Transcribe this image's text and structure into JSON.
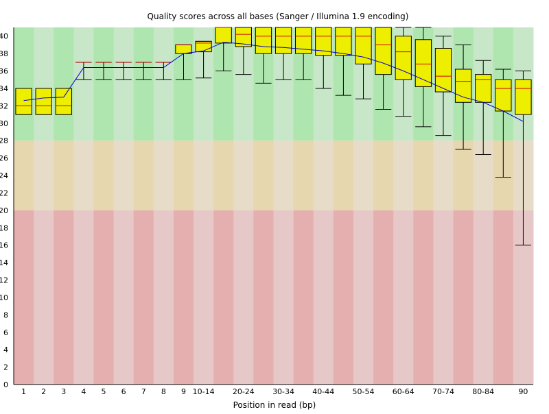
{
  "chart_data": {
    "type": "box",
    "title": "Quality scores across all bases (Sanger / Illumina 1.9 encoding)",
    "xlabel": "Position in read (bp)",
    "ylabel": "",
    "ylim": [
      0,
      41
    ],
    "y_ticks": [
      0,
      2,
      4,
      6,
      8,
      10,
      12,
      14,
      16,
      18,
      20,
      22,
      24,
      26,
      28,
      30,
      32,
      34,
      36,
      38,
      40
    ],
    "zones": [
      {
        "name": "good",
        "from": 28,
        "to": 41,
        "colors": [
          "#afe6af",
          "#c8e6c8"
        ]
      },
      {
        "name": "reasonable",
        "from": 20,
        "to": 28,
        "colors": [
          "#e6d7af",
          "#e6dcc8"
        ]
      },
      {
        "name": "poor",
        "from": 0,
        "to": 20,
        "colors": [
          "#e6afaf",
          "#e6c8c8"
        ]
      }
    ],
    "colors": {
      "box": "#eeee00",
      "box_stroke": "#000000",
      "median": "#cc0000",
      "mean_line": "#0000cc",
      "whisker": "#000000"
    },
    "categories": [
      "1",
      "2",
      "3",
      "4",
      "5",
      "6",
      "7",
      "8",
      "9",
      "10-14",
      "15-19",
      "20-24",
      "25-29",
      "30-34",
      "35-39",
      "40-44",
      "45-49",
      "50-54",
      "55-59",
      "60-64",
      "65-69",
      "70-74",
      "75-79",
      "80-84",
      "85-89",
      "90"
    ],
    "x_tick_labels": [
      "1",
      "2",
      "3",
      "4",
      "5",
      "6",
      "7",
      "8",
      "9",
      "10-14",
      "",
      "20-24",
      "",
      "30-34",
      "",
      "40-44",
      "",
      "50-54",
      "",
      "60-64",
      "",
      "70-74",
      "",
      "80-84",
      "",
      "90"
    ],
    "series": [
      {
        "q1": 31,
        "median": 32,
        "q3": 34,
        "lower": 31,
        "upper": 34,
        "mean": 32.6
      },
      {
        "q1": 31,
        "median": 32,
        "q3": 34,
        "lower": 31,
        "upper": 34,
        "mean": 32.9
      },
      {
        "q1": 31,
        "median": 32,
        "q3": 34,
        "lower": 31,
        "upper": 34,
        "mean": 33.0
      },
      {
        "q1": 37,
        "median": 37,
        "q3": 37,
        "lower": 35,
        "upper": 37,
        "mean": 36.4
      },
      {
        "q1": 37,
        "median": 37,
        "q3": 37,
        "lower": 35,
        "upper": 37,
        "mean": 36.4
      },
      {
        "q1": 37,
        "median": 37,
        "q3": 37,
        "lower": 35,
        "upper": 37,
        "mean": 36.4
      },
      {
        "q1": 37,
        "median": 37,
        "q3": 37,
        "lower": 35,
        "upper": 37,
        "mean": 36.4
      },
      {
        "q1": 37,
        "median": 37,
        "q3": 37,
        "lower": 35,
        "upper": 37,
        "mean": 36.4
      },
      {
        "q1": 38,
        "median": 39,
        "q3": 39,
        "lower": 35,
        "upper": 39,
        "mean": 38.0
      },
      {
        "q1": 38.2,
        "median": 39.2,
        "q3": 39.4,
        "lower": 35.2,
        "upper": 39.4,
        "mean": 38.3
      },
      {
        "q1": 39.2,
        "median": 41,
        "q3": 41,
        "lower": 36,
        "upper": 41,
        "mean": 39.3
      },
      {
        "q1": 38.8,
        "median": 40.2,
        "q3": 41,
        "lower": 35.6,
        "upper": 41,
        "mean": 39.1
      },
      {
        "q1": 38,
        "median": 40,
        "q3": 41,
        "lower": 34.6,
        "upper": 41,
        "mean": 38.8
      },
      {
        "q1": 38,
        "median": 40,
        "q3": 41,
        "lower": 35,
        "upper": 41,
        "mean": 38.7
      },
      {
        "q1": 38,
        "median": 40,
        "q3": 41,
        "lower": 35,
        "upper": 41,
        "mean": 38.5
      },
      {
        "q1": 37.8,
        "median": 40,
        "q3": 41,
        "lower": 34,
        "upper": 41,
        "mean": 38.3
      },
      {
        "q1": 37.8,
        "median": 40,
        "q3": 41,
        "lower": 33.2,
        "upper": 41,
        "mean": 38.0
      },
      {
        "q1": 36.8,
        "median": 40,
        "q3": 41,
        "lower": 32.8,
        "upper": 41,
        "mean": 37.6
      },
      {
        "q1": 35.6,
        "median": 39,
        "q3": 41,
        "lower": 31.6,
        "upper": 41,
        "mean": 36.9
      },
      {
        "q1": 35,
        "median": 38.2,
        "q3": 40,
        "lower": 30.8,
        "upper": 41,
        "mean": 36.0
      },
      {
        "q1": 34.2,
        "median": 36.8,
        "q3": 39.6,
        "lower": 29.6,
        "upper": 41,
        "mean": 35.0
      },
      {
        "q1": 33.6,
        "median": 35.4,
        "q3": 38.6,
        "lower": 28.6,
        "upper": 40,
        "mean": 34.0
      },
      {
        "q1": 32.4,
        "median": 34.8,
        "q3": 36.2,
        "lower": 27,
        "upper": 39,
        "mean": 33.0
      },
      {
        "q1": 32.4,
        "median": 35,
        "q3": 35.6,
        "lower": 26.4,
        "upper": 37.2,
        "mean": 32.4
      },
      {
        "q1": 31.4,
        "median": 34,
        "q3": 35,
        "lower": 23.8,
        "upper": 36.2,
        "mean": 31.4
      },
      {
        "q1": 31,
        "median": 34,
        "q3": 35,
        "lower": 16,
        "upper": 36,
        "mean": 30.2
      }
    ]
  }
}
